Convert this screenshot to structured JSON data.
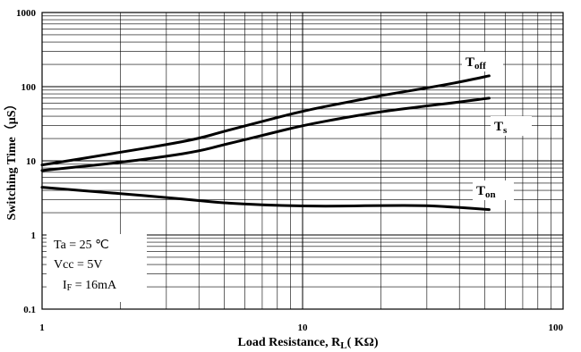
{
  "chart_data": {
    "type": "line",
    "xscale": "log",
    "yscale": "log",
    "xlim": [
      1,
      100
    ],
    "ylim": [
      0.1,
      1000
    ],
    "xticks": [
      "1",
      "10",
      "100"
    ],
    "yticks": [
      "0.1",
      "1",
      "10",
      "100",
      "1000"
    ],
    "xlabel": {
      "main": "Load Resistance, R",
      "sub": "L",
      "unit": "( KΩ)"
    },
    "ylabel": "Switching Time（μS）",
    "grid": true,
    "series": [
      {
        "name": "T",
        "name_sub": "off",
        "x": [
          1,
          2,
          3,
          4,
          5,
          7,
          10,
          15,
          20,
          30,
          40,
          52
        ],
        "y": [
          8.8,
          13,
          16.5,
          20,
          25,
          34,
          47,
          62,
          76,
          96,
          115,
          140
        ]
      },
      {
        "name": "T",
        "name_sub": "s",
        "x": [
          1,
          2,
          3,
          4,
          5,
          7,
          10,
          15,
          20,
          30,
          40,
          52
        ],
        "y": [
          7.4,
          9.5,
          11.5,
          13.5,
          16.5,
          22,
          30,
          39,
          46,
          55,
          62,
          70
        ]
      },
      {
        "name": "T",
        "name_sub": "on",
        "x": [
          1,
          2,
          3,
          4,
          5,
          7,
          10,
          15,
          20,
          30,
          40,
          52
        ],
        "y": [
          4.4,
          3.6,
          3.2,
          2.9,
          2.7,
          2.55,
          2.45,
          2.45,
          2.5,
          2.5,
          2.35,
          2.2
        ]
      }
    ],
    "conditions": [
      {
        "main": "Ta = 25 ℃",
        "sub": ""
      },
      {
        "main": "Vcc = 5V",
        "sub": ""
      },
      {
        "main": "I",
        "sub": "F",
        "rest": " = 16mA"
      }
    ]
  }
}
